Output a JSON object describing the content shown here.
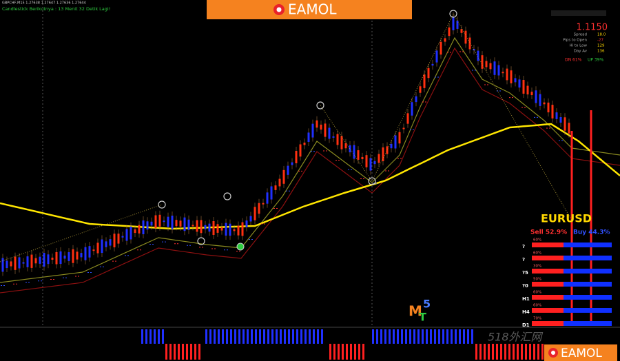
{
  "header": {
    "symbol": "GBPCHF,M15  1.27638 1.27647 1.27636 1.27644",
    "countdown": "Candlestick Berikutnya : 13 Menit 32 Detik Lagi!",
    "logo": "EAMOL"
  },
  "info_panel": {
    "price": "1.1150",
    "rows": [
      [
        "Spread",
        "18.0"
      ],
      [
        "Pips to Open",
        "-27"
      ],
      [
        "Hi to Low",
        "129"
      ],
      [
        "Day Av",
        "136"
      ]
    ],
    "down": "DN 61%",
    "up": "UP 39%"
  },
  "strength_panel": {
    "symbol": "EURUSD",
    "sell": "Sell 52.9%",
    "buy": "Buy 44.3%",
    "rows": [
      {
        "tf": "?",
        "pct": "60%"
      },
      {
        "tf": "?",
        "pct": "60%"
      },
      {
        "tf": "?5",
        "pct": "30%"
      },
      {
        "tf": "?0",
        "pct": "50%"
      },
      {
        "tf": "H1",
        "pct": "60%"
      },
      {
        "tf": "H4",
        "pct": "60%"
      },
      {
        "tf": "D1",
        "pct": "70%"
      }
    ]
  },
  "platform_logo": {
    "m": "M",
    "t": "T",
    "five": "5"
  },
  "watermark": "518外汇网",
  "footer_logo": "EAMOL"
}
